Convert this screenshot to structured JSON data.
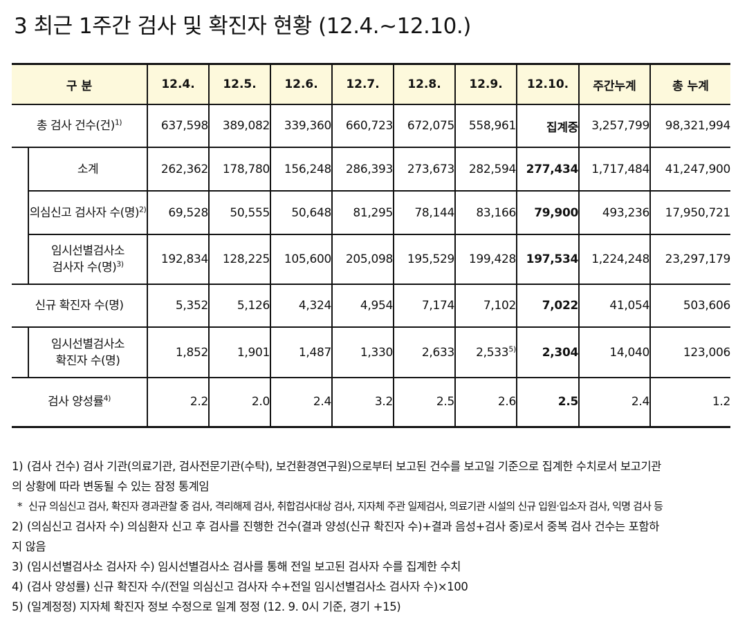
{
  "title": "3  최근 1주간 검사 및 확진자 현황 (12.4.~12.10.)",
  "table": {
    "headers": [
      "구 분",
      "12.4.",
      "12.5.",
      "12.6.",
      "12.7.",
      "12.8.",
      "12.9.",
      "12.10.",
      "주간누계",
      "총 누계"
    ],
    "rows": {
      "total": {
        "label": "총 검사 건수(건)",
        "sup": "1)",
        "values": [
          "637,598",
          "389,082",
          "339,360",
          "660,723",
          "672,075",
          "558,961",
          "집계중",
          "3,257,799",
          "98,321,994"
        ]
      },
      "subtotal": {
        "label": "소계",
        "values": [
          "262,362",
          "178,780",
          "156,248",
          "286,393",
          "273,673",
          "282,594",
          "277,434",
          "1,717,484",
          "41,247,900"
        ]
      },
      "suspect": {
        "label": "의심신고 검사자 수(명)",
        "sup": "2)",
        "values": [
          "69,528",
          "50,555",
          "50,648",
          "81,295",
          "78,144",
          "83,166",
          "79,900",
          "493,236",
          "17,950,721"
        ]
      },
      "temp_site": {
        "label_line1": "임시선별검사소",
        "label_line2": "검사자 수(명)",
        "sup": "3)",
        "values": [
          "192,834",
          "128,225",
          "105,600",
          "205,098",
          "195,529",
          "199,428",
          "197,534",
          "1,224,248",
          "23,297,179"
        ]
      },
      "new_cases": {
        "label": "신규 확진자 수(명)",
        "values": [
          "5,352",
          "5,126",
          "4,324",
          "4,954",
          "7,174",
          "7,102",
          "7,022",
          "41,054",
          "503,606"
        ]
      },
      "temp_cases": {
        "label_line1": "임시선별검사소",
        "label_line2": "확진자 수(명)",
        "values": [
          "1,852",
          "1,901",
          "1,487",
          "1,330",
          "2,633",
          "2,533",
          "2,304",
          "14,040",
          "123,006"
        ],
        "value_sup_12_9": "5)"
      },
      "positivity": {
        "label": "검사 양성률",
        "sup": "4)",
        "values": [
          "2.2",
          "2.0",
          "2.4",
          "3.2",
          "2.5",
          "2.6",
          "2.5",
          "2.4",
          "1.2"
        ]
      }
    }
  },
  "notes": {
    "n1_num": "1)",
    "n1_line1": "(검사 건수) 검사 기관(의료기관, 검사전문기관(수탁), 보건환경연구원)으로부터 보고된 건수를 보고일 기준으로 집계한 수치로서 보고기관",
    "n1_line2": "의 상황에 따라 변동될 수 있는 잠정 통계임",
    "star_num": "*",
    "star_text": "신규 의심신고 검사, 확진자 경과관찰 중 검사, 격리해제 검사, 취합검사대상 검사, 지자체 주관 일제검사, 의료기관 시설의 신규 입원·입소자 검사, 익명 검사 등",
    "n2_num": "2)",
    "n2_line1": "(의심신고 검사자 수) 의심환자 신고 후 검사를 진행한 건수(결과 양성(신규 확진자 수)+결과 음성+검사 중)로서 중복 검사 건수는 포함하",
    "n2_line2": "지 않음",
    "n3_num": "3)",
    "n3_text": "(임시선별검사소 검사자 수) 임시선별검사소 검사를 통해 전일 보고된 검사자 수를 집계한 수치",
    "n4_num": "4)",
    "n4_text": "(검사 양성률) 신규 확진자 수/(전일 의심신고 검사자 수+전일 임시선별검사소 검사자 수)×100",
    "n5_num": "5)",
    "n5_text": "(일계정정) 지자체 확진자 정보 수정으로 일계 정정 (12. 9. 0시 기준, 경기 +15)"
  }
}
